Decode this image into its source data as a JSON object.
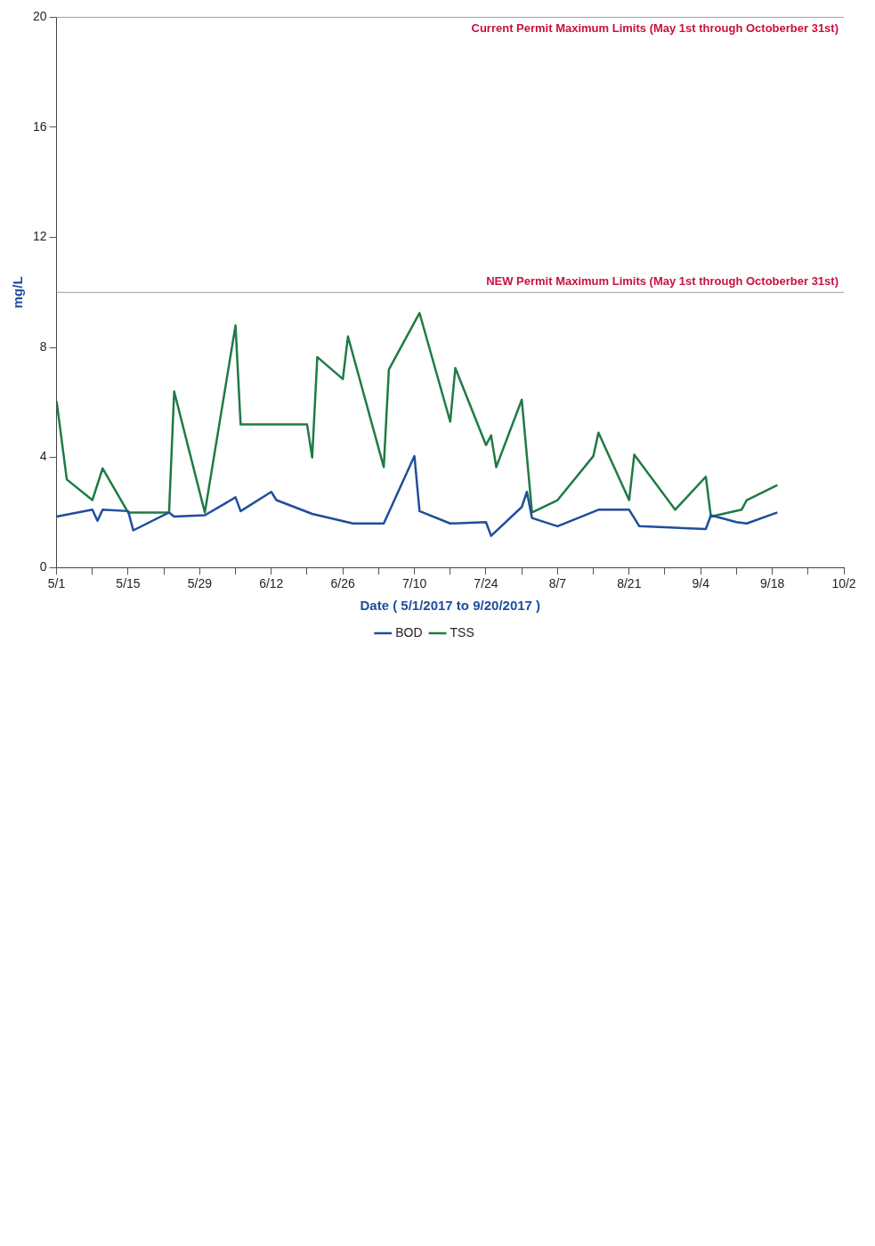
{
  "chart_data": {
    "type": "line",
    "xlabel": "Date ( 5/1/2017 to 9/20/2017 )",
    "ylabel": "mg/L",
    "xlim": [
      "2017-05-01",
      "2017-10-02"
    ],
    "xticks": [
      {
        "value": "2017-05-01",
        "label": "5/1"
      },
      {
        "value": "2017-05-08",
        "label": null
      },
      {
        "value": "2017-05-15",
        "label": "5/15"
      },
      {
        "value": "2017-05-22",
        "label": null
      },
      {
        "value": "2017-05-29",
        "label": "5/29"
      },
      {
        "value": "2017-06-05",
        "label": null
      },
      {
        "value": "2017-06-12",
        "label": "6/12"
      },
      {
        "value": "2017-06-19",
        "label": null
      },
      {
        "value": "2017-06-26",
        "label": "6/26"
      },
      {
        "value": "2017-07-03",
        "label": null
      },
      {
        "value": "2017-07-10",
        "label": "7/10"
      },
      {
        "value": "2017-07-17",
        "label": null
      },
      {
        "value": "2017-07-24",
        "label": "7/24"
      },
      {
        "value": "2017-07-31",
        "label": null
      },
      {
        "value": "2017-08-07",
        "label": "8/7"
      },
      {
        "value": "2017-08-14",
        "label": null
      },
      {
        "value": "2017-08-21",
        "label": "8/21"
      },
      {
        "value": "2017-08-28",
        "label": null
      },
      {
        "value": "2017-09-04",
        "label": "9/4"
      },
      {
        "value": "2017-09-11",
        "label": null
      },
      {
        "value": "2017-09-18",
        "label": "9/18"
      },
      {
        "value": "2017-09-25",
        "label": null
      },
      {
        "value": "2017-10-02",
        "label": "10/2"
      }
    ],
    "ylim": [
      0,
      20
    ],
    "yticks": [
      0,
      4,
      8,
      12,
      16,
      20
    ],
    "grid": false,
    "legend": "bottom",
    "marker": "none",
    "line_style": "solid",
    "series": [
      {
        "name": "BOD",
        "color": "#1f4e9c",
        "x": [
          "2017-05-01",
          "2017-05-08",
          "2017-05-09",
          "2017-05-10",
          "2017-05-15",
          "2017-05-16",
          "2017-05-23",
          "2017-05-24",
          "2017-05-30",
          "2017-06-05",
          "2017-06-06",
          "2017-06-12",
          "2017-06-13",
          "2017-06-20",
          "2017-06-28",
          "2017-07-04",
          "2017-07-10",
          "2017-07-11",
          "2017-07-17",
          "2017-07-24",
          "2017-07-25",
          "2017-07-31",
          "2017-08-01",
          "2017-08-02",
          "2017-08-07",
          "2017-08-15",
          "2017-08-21",
          "2017-08-23",
          "2017-09-05",
          "2017-09-06",
          "2017-09-11",
          "2017-09-13",
          "2017-09-19"
        ],
        "values": [
          1.85,
          2.1,
          1.7,
          2.1,
          2.05,
          1.35,
          2.0,
          1.85,
          1.9,
          2.55,
          2.05,
          2.75,
          2.45,
          1.95,
          1.6,
          1.6,
          4.05,
          2.05,
          1.6,
          1.65,
          1.15,
          2.2,
          2.75,
          1.8,
          1.5,
          2.1,
          2.1,
          1.5,
          1.4,
          1.9,
          1.65,
          1.6,
          2.0
        ]
      },
      {
        "name": "TSS",
        "color": "#1e7b45",
        "x": [
          "2017-05-01",
          "2017-05-03",
          "2017-05-08",
          "2017-05-10",
          "2017-05-15",
          "2017-05-23",
          "2017-05-24",
          "2017-05-30",
          "2017-06-05",
          "2017-06-06",
          "2017-06-19",
          "2017-06-20",
          "2017-06-21",
          "2017-06-26",
          "2017-06-27",
          "2017-07-04",
          "2017-07-05",
          "2017-07-11",
          "2017-07-17",
          "2017-07-18",
          "2017-07-24",
          "2017-07-25",
          "2017-07-26",
          "2017-07-31",
          "2017-08-02",
          "2017-08-07",
          "2017-08-14",
          "2017-08-15",
          "2017-08-21",
          "2017-08-22",
          "2017-08-30",
          "2017-09-05",
          "2017-09-06",
          "2017-09-12",
          "2017-09-13",
          "2017-09-19"
        ],
        "values": [
          6.05,
          3.2,
          2.45,
          3.6,
          2.0,
          2.0,
          6.4,
          2.0,
          8.8,
          5.2,
          5.2,
          4.0,
          7.65,
          6.85,
          8.4,
          3.65,
          7.2,
          9.25,
          5.3,
          7.25,
          4.45,
          4.8,
          3.65,
          6.1,
          2.0,
          2.45,
          4.05,
          4.9,
          2.45,
          4.1,
          2.1,
          3.3,
          1.85,
          2.1,
          2.45,
          3.0
        ]
      }
    ],
    "ref_lines": [
      {
        "axis": "y",
        "value": 10,
        "label": "NEW Permit Maximum Limits (May 1st through Octoberber 31st)",
        "color": "#a0a0a0"
      },
      {
        "axis": "y",
        "value": 20,
        "label": "Current Permit Maximum Limits (May 1st through Octoberber 31st)",
        "color": "#a0a0a0"
      }
    ]
  }
}
